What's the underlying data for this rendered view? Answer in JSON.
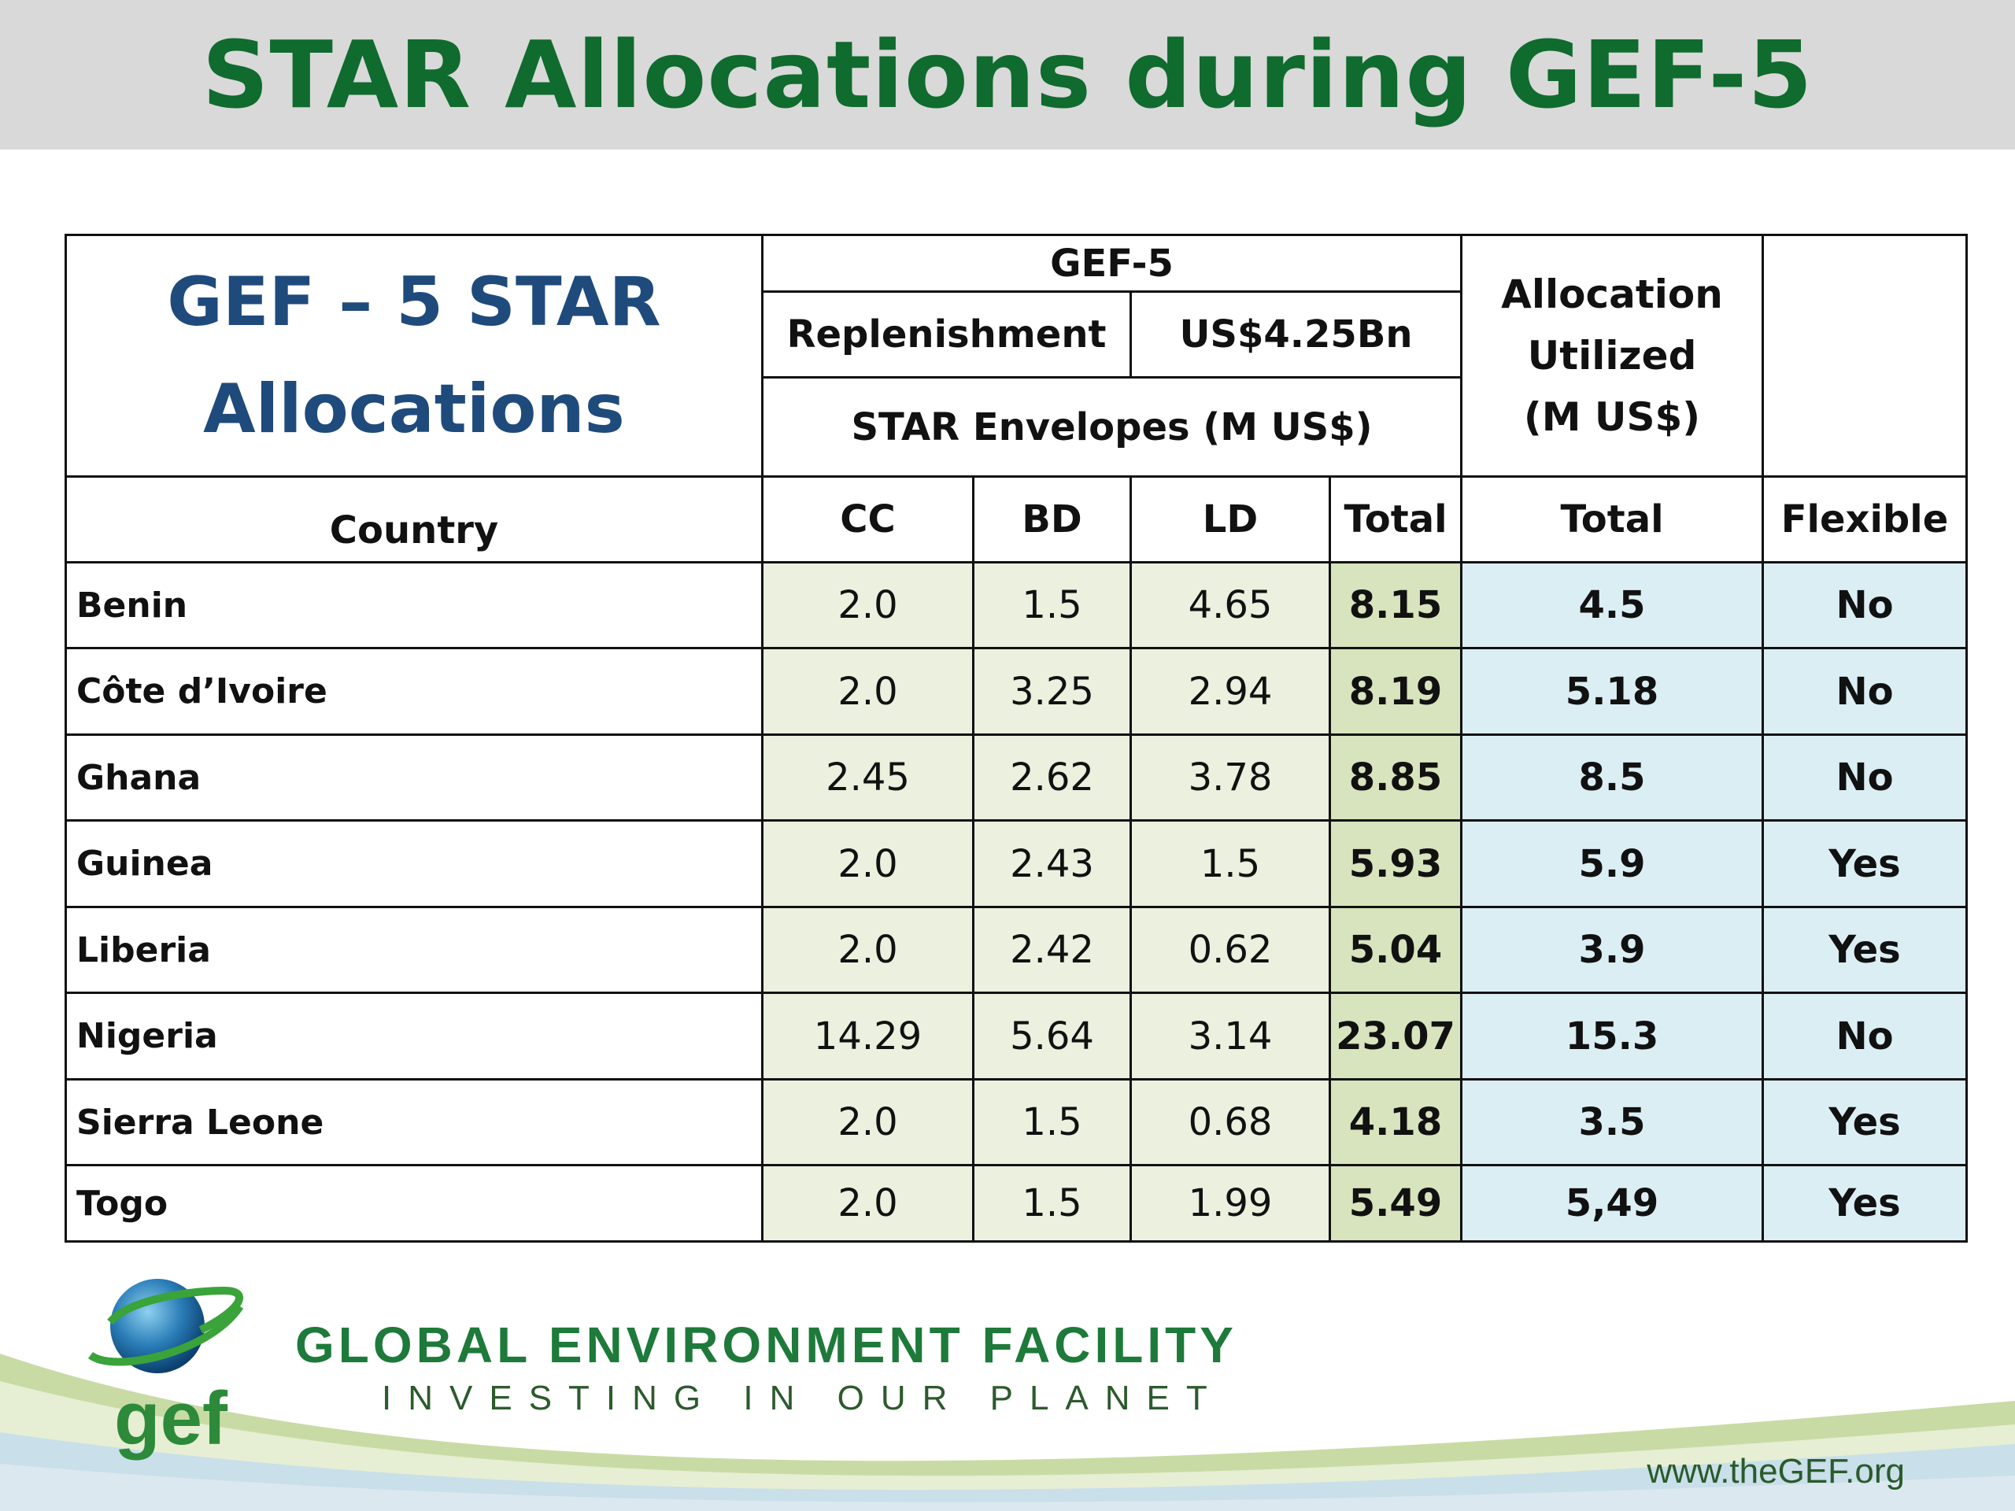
{
  "title": "STAR Allocations during GEF-5",
  "table": {
    "corner_line1": "GEF – 5 STAR",
    "corner_line2": "Allocations",
    "gef5": "GEF-5",
    "replenishment_label": "Replenishment",
    "replenishment_value": "US$4.25Bn",
    "star_envelopes": "STAR Envelopes (M US$)",
    "allocation_line1": "Allocation",
    "allocation_line2": "Utilized",
    "allocation_line3": "(M US$)",
    "columns": [
      "Country",
      "CC",
      "BD",
      "LD",
      "Total",
      "Total",
      "Flexible"
    ],
    "rows": [
      {
        "country": "Benin",
        "cc": "2.0",
        "bd": "1.5",
        "ld": "4.65",
        "total": "8.15",
        "utilized": "4.5",
        "flexible": "No"
      },
      {
        "country": "Côte d’Ivoire",
        "cc": "2.0",
        "bd": "3.25",
        "ld": "2.94",
        "total": "8.19",
        "utilized": "5.18",
        "flexible": "No"
      },
      {
        "country": "Ghana",
        "cc": "2.45",
        "bd": "2.62",
        "ld": "3.78",
        "total": "8.85",
        "utilized": "8.5",
        "flexible": "No"
      },
      {
        "country": "Guinea",
        "cc": "2.0",
        "bd": "2.43",
        "ld": "1.5",
        "total": "5.93",
        "utilized": "5.9",
        "flexible": "Yes"
      },
      {
        "country": "Liberia",
        "cc": "2.0",
        "bd": "2.42",
        "ld": "0.62",
        "total": "5.04",
        "utilized": "3.9",
        "flexible": "Yes"
      },
      {
        "country": "Nigeria",
        "cc": "14.29",
        "bd": "5.64",
        "ld": "3.14",
        "total": "23.07",
        "utilized": "15.3",
        "flexible": "No"
      },
      {
        "country": "Sierra Leone",
        "cc": "2.0",
        "bd": "1.5",
        "ld": "0.68",
        "total": "4.18",
        "utilized": "3.5",
        "flexible": "Yes"
      },
      {
        "country": "Togo",
        "cc": "2.0",
        "bd": "1.5",
        "ld": "1.99",
        "total": "5.49",
        "utilized": "5,49",
        "flexible": "Yes"
      }
    ]
  },
  "footer": {
    "logo_text": "gef",
    "org_name": "GLOBAL ENVIRONMENT FACILITY",
    "tagline": "INVESTING IN OUR PLANET",
    "website": "www.theGEF.org"
  },
  "colors": {
    "title_green": "#0f6b2e",
    "header_blue": "#1f4a7c",
    "no_red": "#e00000",
    "yes_green": "#1f9a3a",
    "envelope_fill": "#ebf0df",
    "total_fill": "#d7e4bd",
    "allocation_fill": "#dbeef4"
  }
}
